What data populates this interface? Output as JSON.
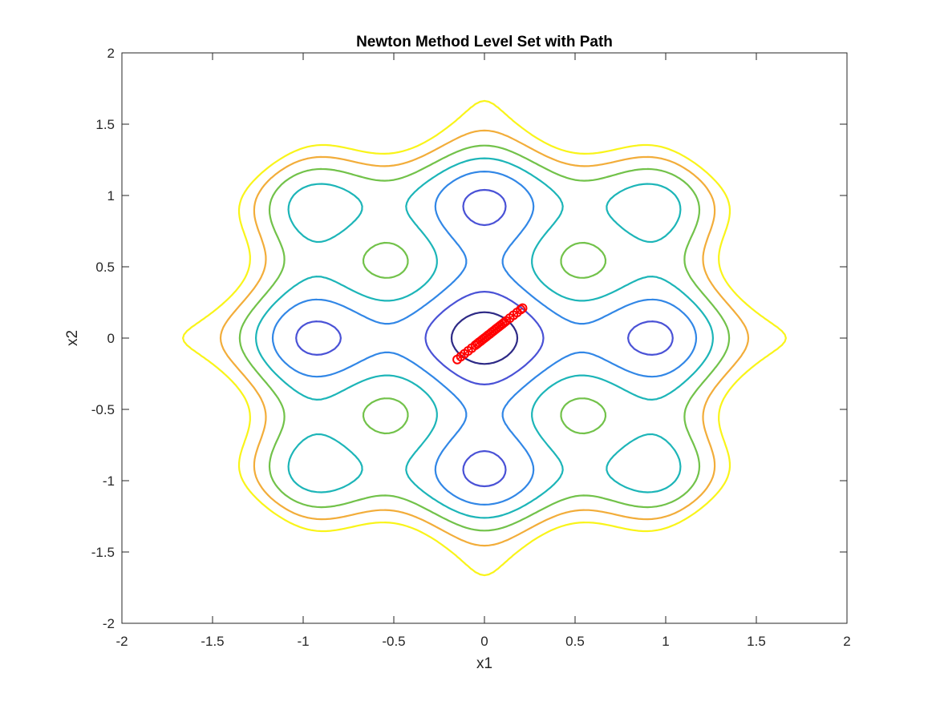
{
  "chart_data": {
    "type": "contour",
    "title": "Newton Method Level Set with Path",
    "xlabel": "x1",
    "ylabel": "x2",
    "xlim": [
      -2,
      2
    ],
    "ylim": [
      -2,
      2
    ],
    "xticks": [
      "-2",
      "-1.5",
      "-1",
      "-0.5",
      "0",
      "0.5",
      "1",
      "1.5",
      "2"
    ],
    "yticks": [
      "2",
      "1.5",
      "1",
      "0.5",
      "0",
      "-0.5",
      "-1",
      "-1.5",
      "-2"
    ],
    "xtick_values": [
      -2,
      -1.5,
      -1,
      -0.5,
      0,
      0.5,
      1,
      1.5,
      2
    ],
    "ytick_values": [
      2,
      1.5,
      1,
      0.5,
      0,
      -0.5,
      -1,
      -1.5,
      -2
    ],
    "grid": false,
    "colormap": "parula",
    "contour_levels": [
      {
        "level": 1,
        "color": "#2e2a86"
      },
      {
        "level": 2,
        "color": "#4a52d6"
      },
      {
        "level": 3,
        "color": "#3287e6"
      },
      {
        "level": 4,
        "color": "#1db5b8"
      },
      {
        "level": 5,
        "color": "#72c24a"
      },
      {
        "level": 6,
        "color": "#f2ad3a"
      },
      {
        "level": 7,
        "color": "#f9f41a"
      }
    ],
    "path": {
      "marker": "circle",
      "color": "#ff0000",
      "x": [
        -0.15,
        -0.13,
        -0.11,
        -0.09,
        -0.07,
        -0.05,
        -0.04,
        -0.03,
        -0.02,
        -0.01,
        0.0,
        0.01,
        0.02,
        0.03,
        0.04,
        0.05,
        0.06,
        0.07,
        0.08,
        0.09,
        0.1,
        0.11,
        0.12,
        0.14,
        0.16,
        0.18,
        0.2,
        0.21
      ],
      "y": [
        -0.15,
        -0.13,
        -0.11,
        -0.09,
        -0.07,
        -0.05,
        -0.04,
        -0.03,
        -0.02,
        -0.01,
        0.0,
        0.01,
        0.02,
        0.03,
        0.04,
        0.05,
        0.06,
        0.07,
        0.08,
        0.09,
        0.1,
        0.11,
        0.12,
        0.14,
        0.16,
        0.18,
        0.2,
        0.21
      ]
    }
  }
}
